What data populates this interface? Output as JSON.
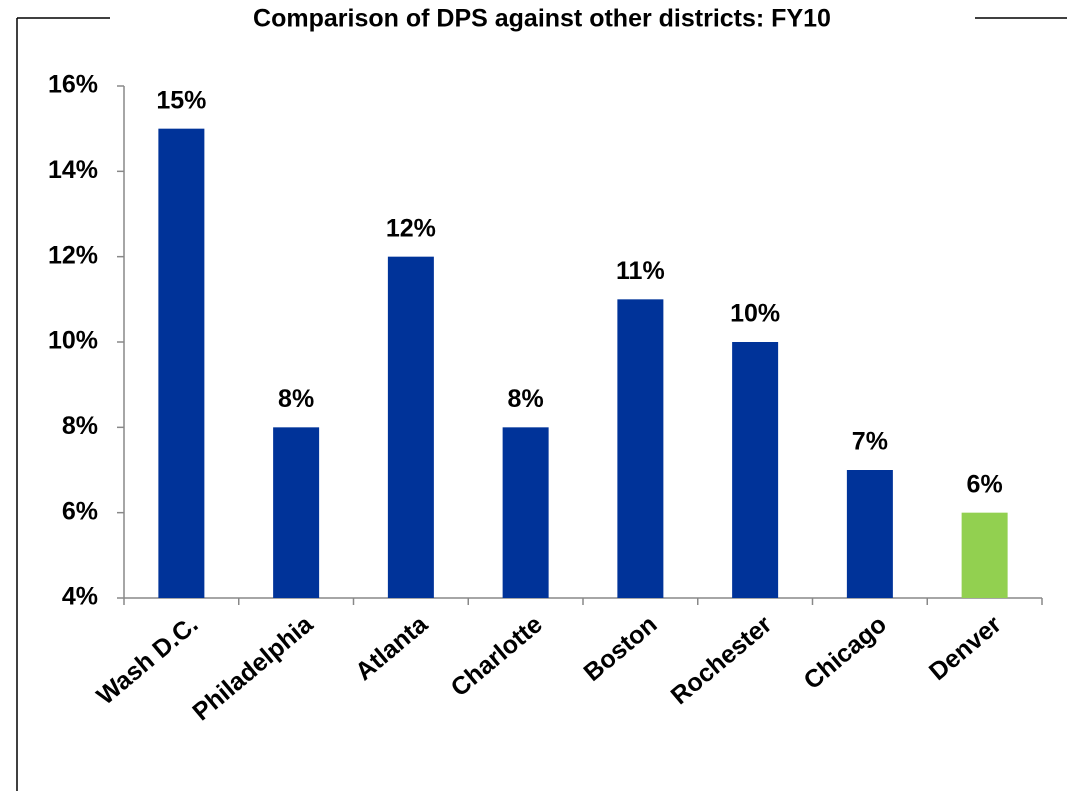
{
  "chart_data": {
    "type": "bar",
    "title": "Comparison of DPS against other districts: FY10",
    "categories": [
      "Wash D.C.",
      "Philadelphia",
      "Atlanta",
      "Charlotte",
      "Boston",
      "Rochester",
      "Chicago",
      "Denver"
    ],
    "values": [
      15,
      8,
      12,
      8,
      11,
      10,
      7,
      6
    ],
    "value_labels": [
      "15%",
      "8%",
      "12%",
      "8%",
      "11%",
      "10%",
      "7%",
      "6%"
    ],
    "colors": [
      "#003399",
      "#003399",
      "#003399",
      "#003399",
      "#003399",
      "#003399",
      "#003399",
      "#92d050"
    ],
    "ylim": [
      4,
      16
    ],
    "yticks": [
      {
        "value": 4,
        "label": "4%"
      },
      {
        "value": 6,
        "label": "6%"
      },
      {
        "value": 8,
        "label": "8%"
      },
      {
        "value": 10,
        "label": "10%"
      },
      {
        "value": 12,
        "label": "12%"
      },
      {
        "value": 14,
        "label": "14%"
      },
      {
        "value": 16,
        "label": "16%"
      }
    ],
    "grid": false
  }
}
